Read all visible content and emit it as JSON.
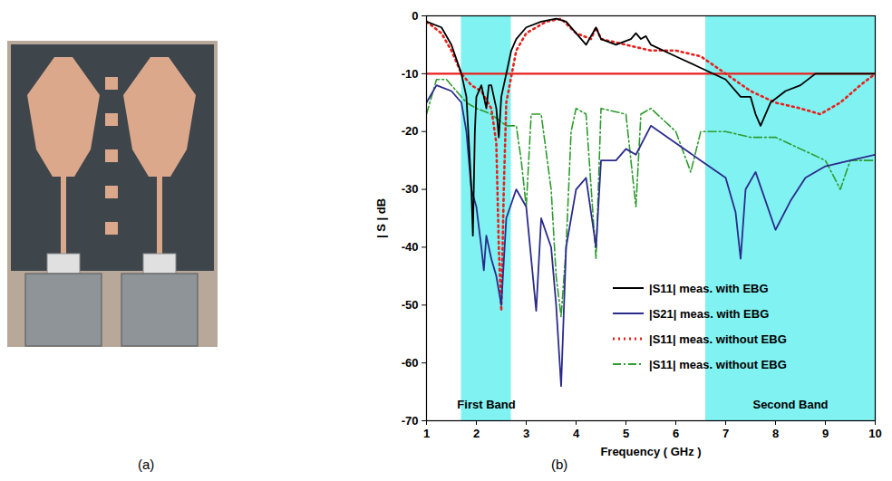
{
  "panel_labels": [
    "(a)",
    "(b)"
  ],
  "chart_data": {
    "type": "line",
    "x_label": "Frequency ( GHz )",
    "y_label": "| S | dB",
    "xlim": [
      1,
      10
    ],
    "xticks": [
      1,
      2,
      3,
      4,
      5,
      6,
      7,
      8,
      9,
      10
    ],
    "ylim": [
      -70,
      0
    ],
    "yticks": [
      -70,
      -60,
      -50,
      -40,
      -30,
      -20,
      -10,
      0
    ],
    "grid": false,
    "legend": "bottom-center",
    "reference_line": {
      "value": -10,
      "color": "#e8201c"
    },
    "bands": [
      {
        "label": "First Band",
        "x": [
          1.7,
          2.7
        ],
        "color": "#80f2f2"
      },
      {
        "label": "Second Band",
        "x": [
          6.6,
          10
        ],
        "color": "#80f2f2"
      }
    ],
    "series": [
      {
        "name": "|S11| meas. with EBG",
        "color": "#000000",
        "line_style": "solid",
        "x": [
          1,
          1.3,
          1.5,
          1.7,
          1.8,
          1.9,
          1.93,
          1.97,
          2.0,
          2.1,
          2.2,
          2.25,
          2.3,
          2.4,
          2.45,
          2.5,
          2.6,
          2.7,
          2.8,
          3.0,
          3.3,
          3.6,
          3.8,
          4.0,
          4.2,
          4.4,
          4.5,
          4.8,
          5.1,
          5.2,
          5.3,
          5.4,
          5.5,
          6.0,
          6.5,
          7.0,
          7.3,
          7.5,
          7.6,
          7.7,
          7.9,
          8.2,
          8.5,
          8.8,
          9.2,
          10
        ],
        "values": [
          -1,
          -2,
          -5,
          -10,
          -14,
          -30,
          -38,
          -20,
          -14,
          -12,
          -16,
          -12,
          -12,
          -16,
          -21,
          -14,
          -10,
          -6,
          -4,
          -2,
          -1,
          -0.5,
          -1,
          -3,
          -5,
          -2,
          -4,
          -5,
          -4,
          -3,
          -4,
          -3.5,
          -5,
          -7,
          -9,
          -11,
          -14,
          -14,
          -17,
          -19,
          -15,
          -13,
          -12,
          -10,
          -10,
          -10
        ]
      },
      {
        "name": "|S21| meas. with EBG",
        "color": "#2b2b8c",
        "line_style": "solid",
        "x": [
          1,
          1.2,
          1.5,
          1.7,
          1.8,
          1.9,
          2.0,
          2.1,
          2.15,
          2.2,
          2.3,
          2.4,
          2.5,
          2.6,
          2.8,
          3.0,
          3.2,
          3.3,
          3.5,
          3.6,
          3.7,
          3.8,
          4.0,
          4.2,
          4.4,
          4.5,
          4.8,
          5.0,
          5.2,
          5.5,
          6.0,
          6.5,
          7.0,
          7.2,
          7.3,
          7.4,
          7.6,
          8.0,
          8.3,
          8.6,
          9.0,
          9.5,
          10
        ],
        "values": [
          -15,
          -12,
          -13,
          -15,
          -20,
          -30,
          -33,
          -40,
          -44,
          -38,
          -42,
          -45,
          -50,
          -35,
          -30,
          -33,
          -51,
          -35,
          -40,
          -50,
          -64,
          -40,
          -30,
          -28,
          -40,
          -25,
          -25,
          -23,
          -24,
          -19,
          -22,
          -25,
          -28,
          -34,
          -42,
          -30,
          -27,
          -37,
          -32,
          -28,
          -26,
          -25,
          -24
        ]
      },
      {
        "name": "|S11| meas. without EBG",
        "color": "#e8201c",
        "line_style": "dotted",
        "x": [
          1,
          1.3,
          1.5,
          1.7,
          1.9,
          2.1,
          2.3,
          2.4,
          2.45,
          2.5,
          2.55,
          2.6,
          2.8,
          3.0,
          3.4,
          3.7,
          4.0,
          4.3,
          4.4,
          4.5,
          5.0,
          5.5,
          6.0,
          6.5,
          7.0,
          7.5,
          8.0,
          8.5,
          8.9,
          9.3,
          9.7,
          10
        ],
        "values": [
          -1,
          -3,
          -6,
          -10,
          -12,
          -13,
          -16,
          -22,
          -40,
          -51,
          -30,
          -15,
          -6,
          -3,
          -1,
          -0.5,
          -3,
          -4,
          -2,
          -4,
          -5,
          -6,
          -6,
          -7,
          -10,
          -13,
          -15,
          -16,
          -17,
          -15,
          -12,
          -10
        ]
      },
      {
        "name": "|S11| meas. without EBG",
        "color": "#2e9b2e",
        "line_style": "dashdot",
        "x": [
          1,
          1.2,
          1.4,
          1.6,
          1.8,
          2.0,
          2.3,
          2.6,
          2.8,
          2.9,
          3.0,
          3.1,
          3.3,
          3.5,
          3.6,
          3.7,
          3.8,
          3.9,
          4.0,
          4.2,
          4.4,
          4.5,
          5.0,
          5.2,
          5.3,
          5.5,
          6.0,
          6.3,
          6.5,
          7.0,
          7.5,
          8.0,
          8.5,
          9.0,
          9.3,
          9.5,
          10
        ],
        "values": [
          -17,
          -11,
          -11,
          -13,
          -15,
          -16,
          -17,
          -19,
          -19,
          -25,
          -33,
          -17,
          -17,
          -30,
          -45,
          -52,
          -40,
          -20,
          -16,
          -17,
          -42,
          -16,
          -17,
          -33,
          -17,
          -16,
          -20,
          -27,
          -20,
          -20,
          -21,
          -21,
          -23,
          -25,
          -30,
          -25,
          -25
        ]
      }
    ]
  }
}
